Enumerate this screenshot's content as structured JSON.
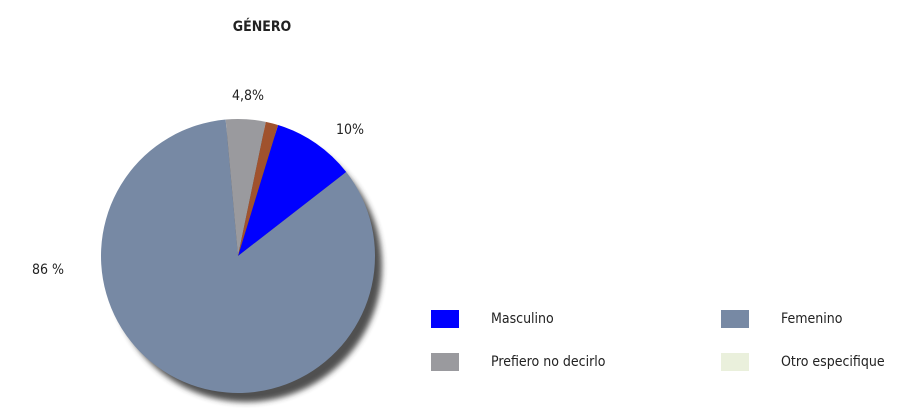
{
  "chart_data": {
    "type": "pie",
    "title": "GÉNERO",
    "categories": [
      "Masculino",
      "Femenino",
      "Prefiero no decirlo",
      "Otro especifique",
      null
    ],
    "values": [
      10,
      86,
      4.8,
      0,
      1.5
    ],
    "value_labels": [
      "10%",
      "86 %",
      "4,8%",
      null,
      null
    ],
    "colors": [
      "#0000ff",
      "#7789a4",
      "#9a9a9e",
      "#eaf0dc",
      "#a0522d"
    ]
  }
}
